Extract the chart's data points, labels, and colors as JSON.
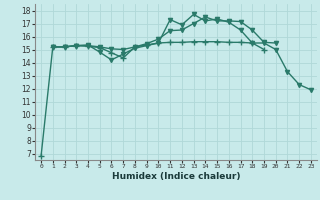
{
  "xlabel": "Humidex (Indice chaleur)",
  "background_color": "#c8eaea",
  "grid_color": "#b0d8d8",
  "line_color": "#2a7a6a",
  "xlim": [
    -0.5,
    23.5
  ],
  "ylim": [
    6.5,
    18.5
  ],
  "yticks": [
    7,
    8,
    9,
    10,
    11,
    12,
    13,
    14,
    15,
    16,
    17,
    18
  ],
  "xticks": [
    0,
    1,
    2,
    3,
    4,
    5,
    6,
    7,
    8,
    9,
    10,
    11,
    12,
    13,
    14,
    15,
    16,
    17,
    18,
    19,
    20,
    21,
    22,
    23
  ],
  "lines": [
    {
      "x": [
        0,
        1,
        2,
        3,
        4,
        5,
        6,
        7,
        8,
        9,
        10,
        11,
        12,
        13,
        14,
        15,
        16,
        17,
        18,
        19
      ],
      "y": [
        6.8,
        15.2,
        15.2,
        15.3,
        15.25,
        15.15,
        14.75,
        14.35,
        15.2,
        15.35,
        15.5,
        15.55,
        15.55,
        15.6,
        15.6,
        15.6,
        15.55,
        15.55,
        15.5,
        15.0
      ],
      "marker": "+",
      "ms": 4,
      "lw": 1.0
    },
    {
      "x": [
        1,
        2,
        3,
        4,
        5,
        6,
        7,
        8,
        9,
        10,
        11,
        12,
        13,
        14,
        15,
        16,
        17,
        18,
        19,
        20
      ],
      "y": [
        15.2,
        15.2,
        15.3,
        15.3,
        15.2,
        15.05,
        15.0,
        15.2,
        15.45,
        15.8,
        16.45,
        16.5,
        17.0,
        17.5,
        17.2,
        17.2,
        17.15,
        16.5,
        15.55,
        15.5
      ],
      "marker": "v",
      "ms": 3,
      "lw": 1.0
    },
    {
      "x": [
        1,
        2,
        3,
        4,
        5,
        6,
        7,
        8,
        9,
        10,
        11,
        12,
        13,
        14,
        15,
        16,
        17,
        18,
        19,
        20,
        21,
        22,
        23
      ],
      "y": [
        15.2,
        15.2,
        15.3,
        15.35,
        14.8,
        14.2,
        14.65,
        15.1,
        15.3,
        15.5,
        17.3,
        16.9,
        17.7,
        17.2,
        17.35,
        17.1,
        16.5,
        15.5,
        15.5,
        15.0,
        13.3,
        12.3,
        11.9
      ],
      "marker": "v",
      "ms": 3,
      "lw": 1.0
    }
  ]
}
